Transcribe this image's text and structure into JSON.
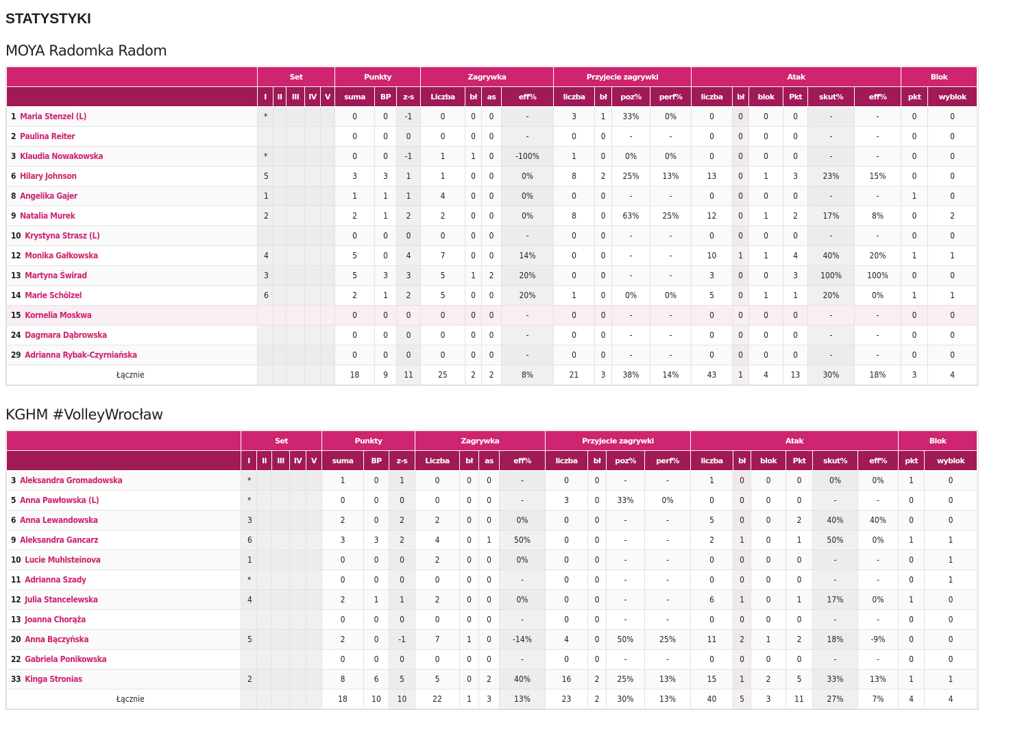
{
  "page_title": "STATYSTYKI",
  "colors": {
    "group_header": "#cf2470",
    "sub_header": "#a01a55",
    "player_link": "#cf2470"
  },
  "group_headers": [
    "Set",
    "Punkty",
    "Zagrywka",
    "Przyjecie zagrywki",
    "Atak",
    "Blok"
  ],
  "sub_headers": [
    "I",
    "II",
    "III",
    "IV",
    "V",
    "suma",
    "BP",
    "z-s",
    "Liczba",
    "bł",
    "as",
    "eff%",
    "liczba",
    "bł",
    "poz%",
    "perf%",
    "liczba",
    "bł",
    "blok",
    "Pkt",
    "skut%",
    "eff%",
    "pkt",
    "wyblok"
  ],
  "teams": [
    {
      "name": "MOYA Radomka Radom",
      "rows": [
        {
          "num": "1",
          "name": "Maria Stenzel (L)",
          "sets": [
            "*",
            "",
            "",
            "",
            ""
          ],
          "stats": [
            "0",
            "0",
            "-1",
            "0",
            "0",
            "0",
            "-",
            "3",
            "1",
            "33%",
            "0%",
            "0",
            "0",
            "0",
            "0",
            "-",
            "-",
            "0",
            "0"
          ]
        },
        {
          "num": "2",
          "name": "Paulina Reiter",
          "sets": [
            "",
            "",
            "",
            "",
            ""
          ],
          "stats": [
            "0",
            "0",
            "0",
            "0",
            "0",
            "0",
            "-",
            "0",
            "0",
            "-",
            "-",
            "0",
            "0",
            "0",
            "0",
            "-",
            "-",
            "0",
            "0"
          ]
        },
        {
          "num": "3",
          "name": "Klaudia Nowakowska",
          "sets": [
            "*",
            "",
            "",
            "",
            ""
          ],
          "stats": [
            "0",
            "0",
            "-1",
            "1",
            "1",
            "0",
            "-100%",
            "1",
            "0",
            "0%",
            "0%",
            "0",
            "0",
            "0",
            "0",
            "-",
            "-",
            "0",
            "0"
          ]
        },
        {
          "num": "6",
          "name": "Hilary Johnson",
          "sets": [
            "5",
            "",
            "",
            "",
            ""
          ],
          "stats": [
            "3",
            "3",
            "1",
            "1",
            "0",
            "0",
            "0%",
            "8",
            "2",
            "25%",
            "13%",
            "13",
            "0",
            "1",
            "3",
            "23%",
            "15%",
            "0",
            "0"
          ]
        },
        {
          "num": "8",
          "name": "Angelika Gajer",
          "sets": [
            "1",
            "",
            "",
            "",
            ""
          ],
          "stats": [
            "1",
            "1",
            "1",
            "4",
            "0",
            "0",
            "0%",
            "0",
            "0",
            "-",
            "-",
            "0",
            "0",
            "0",
            "0",
            "-",
            "-",
            "1",
            "0"
          ]
        },
        {
          "num": "9",
          "name": "Natalia Murek",
          "sets": [
            "2",
            "",
            "",
            "",
            ""
          ],
          "stats": [
            "2",
            "1",
            "2",
            "2",
            "0",
            "0",
            "0%",
            "8",
            "0",
            "63%",
            "25%",
            "12",
            "0",
            "1",
            "2",
            "17%",
            "8%",
            "0",
            "2"
          ]
        },
        {
          "num": "10",
          "name": "Krystyna Strasz (L)",
          "sets": [
            "",
            "",
            "",
            "",
            ""
          ],
          "stats": [
            "0",
            "0",
            "0",
            "0",
            "0",
            "0",
            "-",
            "0",
            "0",
            "-",
            "-",
            "0",
            "0",
            "0",
            "0",
            "-",
            "-",
            "0",
            "0"
          ]
        },
        {
          "num": "12",
          "name": "Monika Gałkowska",
          "sets": [
            "4",
            "",
            "",
            "",
            ""
          ],
          "stats": [
            "5",
            "0",
            "4",
            "7",
            "0",
            "0",
            "14%",
            "0",
            "0",
            "-",
            "-",
            "10",
            "1",
            "1",
            "4",
            "40%",
            "20%",
            "1",
            "1"
          ]
        },
        {
          "num": "13",
          "name": "Martyna Świrad",
          "sets": [
            "3",
            "",
            "",
            "",
            ""
          ],
          "stats": [
            "5",
            "3",
            "3",
            "5",
            "1",
            "2",
            "20%",
            "0",
            "0",
            "-",
            "-",
            "3",
            "0",
            "0",
            "3",
            "100%",
            "100%",
            "0",
            "0"
          ]
        },
        {
          "num": "14",
          "name": "Marie Schölzel",
          "sets": [
            "6",
            "",
            "",
            "",
            ""
          ],
          "stats": [
            "2",
            "1",
            "2",
            "5",
            "0",
            "0",
            "20%",
            "1",
            "0",
            "0%",
            "0%",
            "5",
            "0",
            "1",
            "1",
            "20%",
            "0%",
            "1",
            "1"
          ]
        },
        {
          "num": "15",
          "name": "Kornelia Moskwa",
          "sets": [
            "",
            "",
            "",
            "",
            ""
          ],
          "stats": [
            "0",
            "0",
            "0",
            "0",
            "0",
            "0",
            "-",
            "0",
            "0",
            "-",
            "-",
            "0",
            "0",
            "0",
            "0",
            "-",
            "-",
            "0",
            "0"
          ],
          "highlighted": true
        },
        {
          "num": "24",
          "name": "Dagmara Dąbrowska",
          "sets": [
            "",
            "",
            "",
            "",
            ""
          ],
          "stats": [
            "0",
            "0",
            "0",
            "0",
            "0",
            "0",
            "-",
            "0",
            "0",
            "-",
            "-",
            "0",
            "0",
            "0",
            "0",
            "-",
            "-",
            "0",
            "0"
          ]
        },
        {
          "num": "29",
          "name": "Adrianna Rybak-Czyrniańska",
          "sets": [
            "",
            "",
            "",
            "",
            ""
          ],
          "stats": [
            "0",
            "0",
            "0",
            "0",
            "0",
            "0",
            "-",
            "0",
            "0",
            "-",
            "-",
            "0",
            "0",
            "0",
            "0",
            "-",
            "-",
            "0",
            "0"
          ]
        }
      ],
      "total": {
        "label": "Łącznie",
        "stats": [
          "18",
          "9",
          "11",
          "25",
          "2",
          "2",
          "8%",
          "21",
          "3",
          "38%",
          "14%",
          "43",
          "1",
          "4",
          "13",
          "30%",
          "18%",
          "3",
          "4"
        ]
      }
    },
    {
      "name": "KGHM #VolleyWrocław",
      "rows": [
        {
          "num": "3",
          "name": "Aleksandra Gromadowska",
          "sets": [
            "*",
            "",
            "",
            "",
            ""
          ],
          "stats": [
            "1",
            "0",
            "1",
            "0",
            "0",
            "0",
            "-",
            "0",
            "0",
            "-",
            "-",
            "1",
            "0",
            "0",
            "0",
            "0%",
            "0%",
            "1",
            "0"
          ]
        },
        {
          "num": "5",
          "name": "Anna Pawłowska (L)",
          "sets": [
            "*",
            "",
            "",
            "",
            ""
          ],
          "stats": [
            "0",
            "0",
            "0",
            "0",
            "0",
            "0",
            "-",
            "3",
            "0",
            "33%",
            "0%",
            "0",
            "0",
            "0",
            "0",
            "-",
            "-",
            "0",
            "0"
          ]
        },
        {
          "num": "6",
          "name": "Anna Lewandowska",
          "sets": [
            "3",
            "",
            "",
            "",
            ""
          ],
          "stats": [
            "2",
            "0",
            "2",
            "2",
            "0",
            "0",
            "0%",
            "0",
            "0",
            "-",
            "-",
            "5",
            "0",
            "0",
            "2",
            "40%",
            "40%",
            "0",
            "0"
          ]
        },
        {
          "num": "9",
          "name": "Aleksandra Gancarz",
          "sets": [
            "6",
            "",
            "",
            "",
            ""
          ],
          "stats": [
            "3",
            "3",
            "2",
            "4",
            "0",
            "1",
            "50%",
            "0",
            "0",
            "-",
            "-",
            "2",
            "1",
            "0",
            "1",
            "50%",
            "0%",
            "1",
            "1"
          ]
        },
        {
          "num": "10",
          "name": "Lucie Muhlsteinova",
          "sets": [
            "1",
            "",
            "",
            "",
            ""
          ],
          "stats": [
            "0",
            "0",
            "0",
            "2",
            "0",
            "0",
            "0%",
            "0",
            "0",
            "-",
            "-",
            "0",
            "0",
            "0",
            "0",
            "-",
            "-",
            "0",
            "1"
          ]
        },
        {
          "num": "11",
          "name": "Adrianna Szady",
          "sets": [
            "*",
            "",
            "",
            "",
            ""
          ],
          "stats": [
            "0",
            "0",
            "0",
            "0",
            "0",
            "0",
            "-",
            "0",
            "0",
            "-",
            "-",
            "0",
            "0",
            "0",
            "0",
            "-",
            "-",
            "0",
            "1"
          ]
        },
        {
          "num": "12",
          "name": "Julia Stancelewska",
          "sets": [
            "4",
            "",
            "",
            "",
            ""
          ],
          "stats": [
            "2",
            "1",
            "1",
            "2",
            "0",
            "0",
            "0%",
            "0",
            "0",
            "-",
            "-",
            "6",
            "1",
            "0",
            "1",
            "17%",
            "0%",
            "1",
            "0"
          ]
        },
        {
          "num": "13",
          "name": "Joanna Chorąża",
          "sets": [
            "",
            "",
            "",
            "",
            ""
          ],
          "stats": [
            "0",
            "0",
            "0",
            "0",
            "0",
            "0",
            "-",
            "0",
            "0",
            "-",
            "-",
            "0",
            "0",
            "0",
            "0",
            "-",
            "-",
            "0",
            "0"
          ]
        },
        {
          "num": "20",
          "name": "Anna Bączyńska",
          "sets": [
            "5",
            "",
            "",
            "",
            ""
          ],
          "stats": [
            "2",
            "0",
            "-1",
            "7",
            "1",
            "0",
            "-14%",
            "4",
            "0",
            "50%",
            "25%",
            "11",
            "2",
            "1",
            "2",
            "18%",
            "-9%",
            "0",
            "0"
          ]
        },
        {
          "num": "22",
          "name": "Gabriela Ponikowska",
          "sets": [
            "",
            "",
            "",
            "",
            ""
          ],
          "stats": [
            "0",
            "0",
            "0",
            "0",
            "0",
            "0",
            "-",
            "0",
            "0",
            "-",
            "-",
            "0",
            "0",
            "0",
            "0",
            "-",
            "-",
            "0",
            "0"
          ]
        },
        {
          "num": "33",
          "name": "Kinga Stronias",
          "sets": [
            "2",
            "",
            "",
            "",
            ""
          ],
          "stats": [
            "8",
            "6",
            "5",
            "5",
            "0",
            "2",
            "40%",
            "16",
            "2",
            "25%",
            "13%",
            "15",
            "1",
            "2",
            "5",
            "33%",
            "13%",
            "1",
            "1"
          ]
        }
      ],
      "total": {
        "label": "Łącznie",
        "stats": [
          "18",
          "10",
          "10",
          "22",
          "1",
          "3",
          "13%",
          "23",
          "2",
          "30%",
          "13%",
          "40",
          "5",
          "3",
          "11",
          "27%",
          "7%",
          "4",
          "4"
        ]
      }
    }
  ]
}
